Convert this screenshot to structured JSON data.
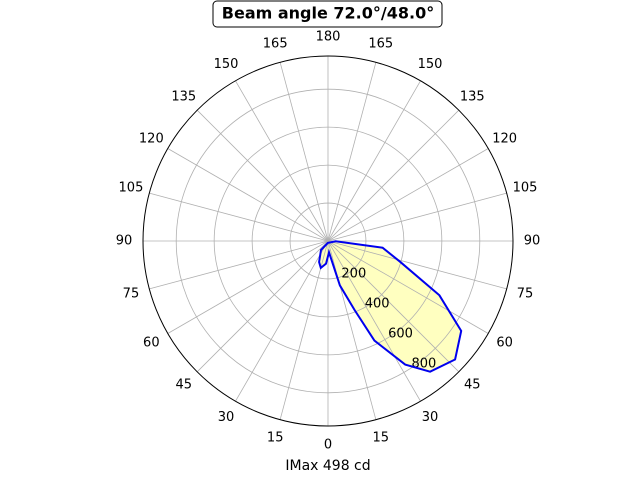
{
  "chart_data": {
    "type": "polar",
    "title": "Beam angle 72.0°/48.0°",
    "x_label": "IMax 498 cd",
    "rlim": [
      0,
      975
    ],
    "rticks": [
      200,
      400,
      600,
      800
    ],
    "grid": true,
    "thetaticks": [
      0,
      15,
      30,
      45,
      60,
      75,
      90,
      105,
      120,
      135,
      150,
      165,
      180,
      {
        "value": 195,
        "label": "165"
      },
      {
        "value": 210,
        "label": "150"
      },
      {
        "value": 225,
        "label": "135"
      },
      {
        "value": 240,
        "label": "120"
      },
      {
        "value": 255,
        "label": "105"
      },
      {
        "value": 270,
        "label": "90"
      },
      {
        "value": 285,
        "label": "75"
      },
      {
        "value": 300,
        "label": "60"
      },
      {
        "value": 315,
        "label": "45"
      },
      {
        "value": 330,
        "label": "30"
      },
      {
        "value": 345,
        "label": "15"
      }
    ],
    "series": [
      {
        "color": "#0000ee",
        "fill": "#ffffc0",
        "theta": [
          -5,
          -38,
          -23,
          -15,
          -5,
          5,
          15,
          21,
          25,
          32,
          38,
          47,
          56,
          64,
          74,
          83,
          88
        ],
        "r": [
          10,
          60,
          120,
          147,
          120,
          60,
          242,
          389,
          579,
          768,
          874,
          916,
          847,
          653,
          395,
          290,
          40
        ]
      }
    ]
  }
}
